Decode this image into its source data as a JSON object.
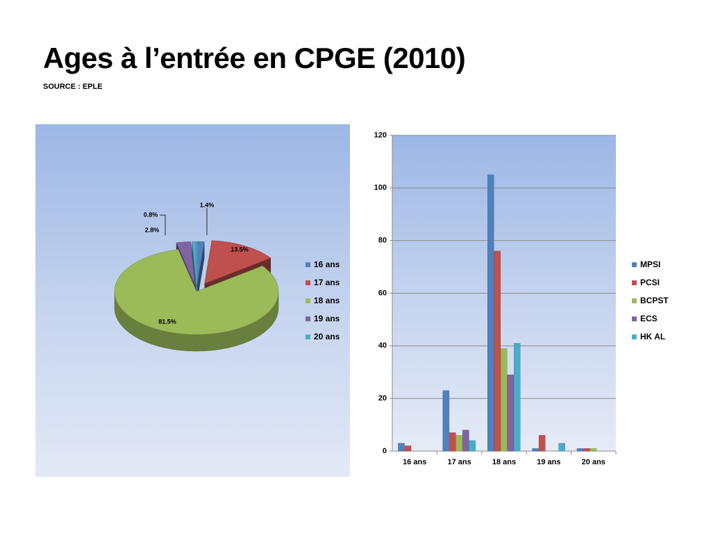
{
  "title": "Ages à l’entrée en CPGE (2010)",
  "subtitle": "SOURCE : EPLE",
  "colors": {
    "blue": "#4f81bd",
    "red": "#c0504d",
    "green": "#9bbb59",
    "purple": "#8064a2",
    "cyan": "#4bacc6"
  },
  "chart_data": [
    {
      "type": "pie",
      "style": "3d-exploded",
      "categories": [
        "16 ans",
        "17 ans",
        "18 ans",
        "19 ans",
        "20 ans"
      ],
      "values": [
        1.4,
        13.5,
        81.5,
        2.8,
        0.8
      ],
      "data_labels": [
        "1.4%",
        "13.5%",
        "81.5%",
        "2.8%",
        "0.8%"
      ],
      "legend_position": "right"
    },
    {
      "type": "bar",
      "categories": [
        "16 ans",
        "17 ans",
        "18 ans",
        "19 ans",
        "20 ans"
      ],
      "series": [
        {
          "name": "MPSI",
          "values": [
            3,
            23,
            105,
            1,
            1
          ]
        },
        {
          "name": "PCSI",
          "values": [
            2,
            7,
            76,
            6,
            1
          ]
        },
        {
          "name": "BCPST",
          "values": [
            0,
            6,
            39,
            0,
            1
          ]
        },
        {
          "name": "ECS",
          "values": [
            0,
            8,
            29,
            0,
            0
          ]
        },
        {
          "name": "HK AL",
          "values": [
            0,
            4,
            41,
            3,
            0
          ]
        }
      ],
      "ylim": [
        0,
        120
      ],
      "yticks": [
        0,
        20,
        40,
        60,
        80,
        100,
        120
      ],
      "grid": true,
      "legend_position": "right"
    }
  ]
}
